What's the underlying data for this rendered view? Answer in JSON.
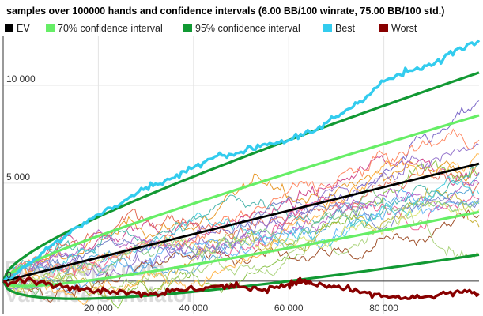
{
  "chart_data": {
    "type": "line",
    "title": "samples over 100000 hands and confidence intervals (6.00 BB/100 winrate, 75.00 BB/100 std.)",
    "xlabel": "",
    "ylabel": "",
    "xlim": [
      0,
      100000
    ],
    "ylim": [
      -1700,
      12500
    ],
    "x_ticks": [
      20000,
      40000,
      60000,
      80000
    ],
    "x_tick_labels": [
      "20 000",
      "40 000",
      "60 000",
      "80 000"
    ],
    "y_ticks": [
      0,
      5000,
      10000
    ],
    "y_tick_labels": [
      "0",
      "5 000",
      "10 000"
    ],
    "grid": true,
    "legend_position": "top",
    "winrate_bb_per_100": 6.0,
    "std_bb_per_100": 75.0,
    "hands": 100000,
    "legend": [
      {
        "label": "EV",
        "color": "#000000"
      },
      {
        "label": "70% confidence interval",
        "color": "#66ee66"
      },
      {
        "label": "95% confidence interval",
        "color": "#119933"
      },
      {
        "label": "Best",
        "color": "#33ccee"
      },
      {
        "label": "Worst",
        "color": "#880000"
      }
    ],
    "series": [
      {
        "name": "EV",
        "x": [
          0,
          100000
        ],
        "y": [
          0,
          6000
        ]
      },
      {
        "name": "Best",
        "x": [
          0,
          5000,
          10000,
          15000,
          20000,
          25000,
          30000,
          35000,
          40000,
          45000,
          50000,
          55000,
          60000,
          65000,
          70000,
          75000,
          80000,
          85000,
          90000,
          95000,
          100000
        ],
        "y": [
          0,
          800,
          1800,
          2700,
          3400,
          4000,
          4800,
          5200,
          5800,
          6400,
          6600,
          7000,
          7200,
          7600,
          8400,
          9200,
          10200,
          10700,
          11000,
          11800,
          12300
        ]
      },
      {
        "name": "Worst",
        "x": [
          0,
          5000,
          10000,
          15000,
          20000,
          25000,
          30000,
          35000,
          40000,
          45000,
          50000,
          55000,
          60000,
          62000,
          63000,
          65000,
          70000,
          75000,
          80000,
          85000,
          90000,
          95000,
          100000
        ],
        "y": [
          0,
          100,
          -150,
          -400,
          -450,
          -500,
          -650,
          -550,
          -400,
          -250,
          -300,
          -400,
          -150,
          -50,
          0,
          -150,
          -300,
          -600,
          -750,
          -900,
          -800,
          -550,
          -650
        ]
      }
    ]
  },
  "watermark": {
    "line1": "Pokerdope.com",
    "line2": "Variance simulator"
  }
}
